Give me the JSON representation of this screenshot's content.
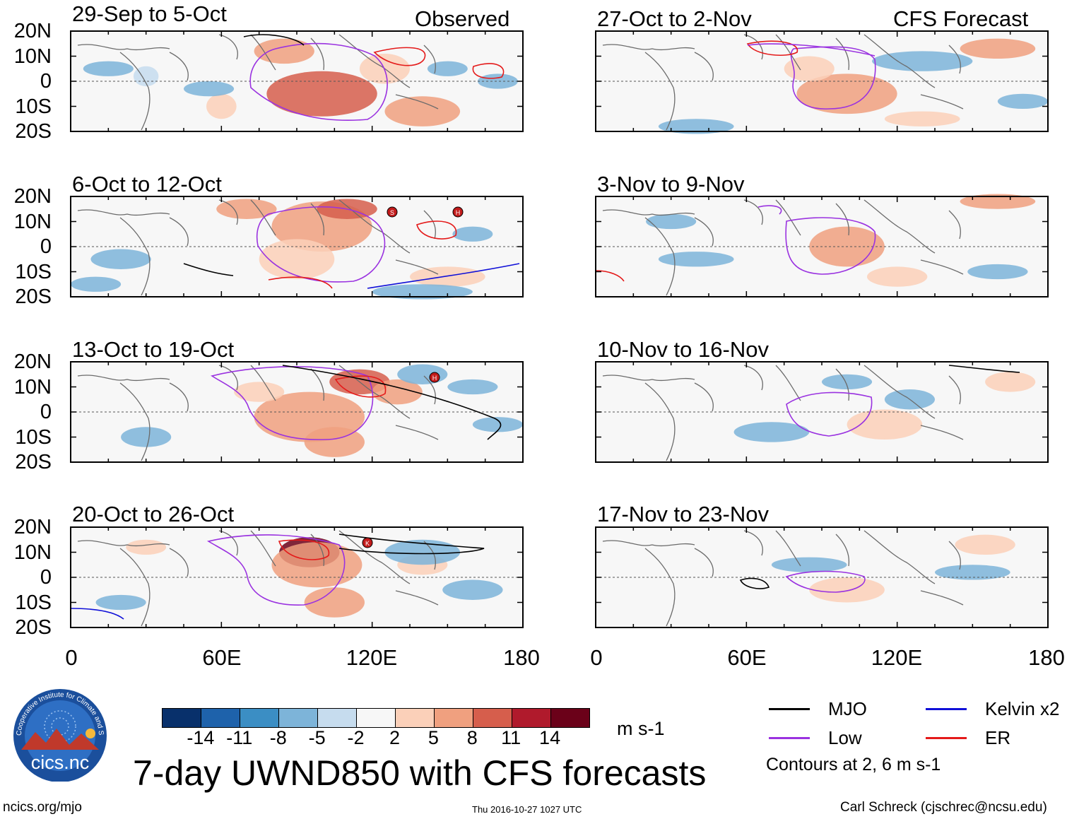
{
  "chart_data": {
    "type": "heatmap",
    "title": "7-day UWND850 with CFS forecasts",
    "units": "m s-1",
    "x_ticks": [
      "0",
      "60E",
      "120E",
      "180"
    ],
    "y_ticks": [
      "20N",
      "10N",
      "0",
      "10S",
      "20S"
    ],
    "xlim": [
      0,
      180
    ],
    "ylim": [
      -20,
      20
    ],
    "observed_label": "Observed",
    "forecast_label": "CFS Forecast",
    "colorbar": {
      "labels": [
        "-14",
        "-11",
        "-8",
        "-5",
        "-2",
        "2",
        "5",
        "8",
        "11",
        "14"
      ],
      "colors": [
        "#08306b",
        "#1e62ab",
        "#3b8ec4",
        "#7db4d9",
        "#c6dcee",
        "#f7f7f7",
        "#fbd0b9",
        "#f0a07f",
        "#d65e4c",
        "#b01a2c",
        "#6b0119"
      ]
    },
    "panels": [
      {
        "period": "29-Sep to 5-Oct",
        "source": "Observed"
      },
      {
        "period": "6-Oct to 12-Oct",
        "source": "Observed"
      },
      {
        "period": "13-Oct to 19-Oct",
        "source": "Observed"
      },
      {
        "period": "20-Oct to 26-Oct",
        "source": "Observed"
      },
      {
        "period": "27-Oct to 2-Nov",
        "source": "CFS Forecast"
      },
      {
        "period": "3-Nov to 9-Nov",
        "source": "CFS Forecast"
      },
      {
        "period": "10-Nov to 16-Nov",
        "source": "CFS Forecast"
      },
      {
        "period": "17-Nov to 23-Nov",
        "source": "CFS Forecast"
      }
    ],
    "storm_markers": [
      "S",
      "H",
      "K"
    ],
    "legend": [
      {
        "name": "MJO",
        "color": "#000000"
      },
      {
        "name": "Kelvin x2",
        "color": "#1010d8"
      },
      {
        "name": "Low",
        "color": "#9a32e0"
      },
      {
        "name": "ER",
        "color": "#e41a1a"
      }
    ],
    "contours_note": "Contours at 2, 6 m s-1"
  },
  "footer": {
    "logo_text": "cics.nc",
    "logo_ring_text": "Cooperative Institute for Climate and Satellites",
    "url": "ncics.org/mjo",
    "timestamp": "Thu 2016-10-27 1027 UTC",
    "credit": "Carl Schreck (cjschrec@ncsu.edu)"
  }
}
